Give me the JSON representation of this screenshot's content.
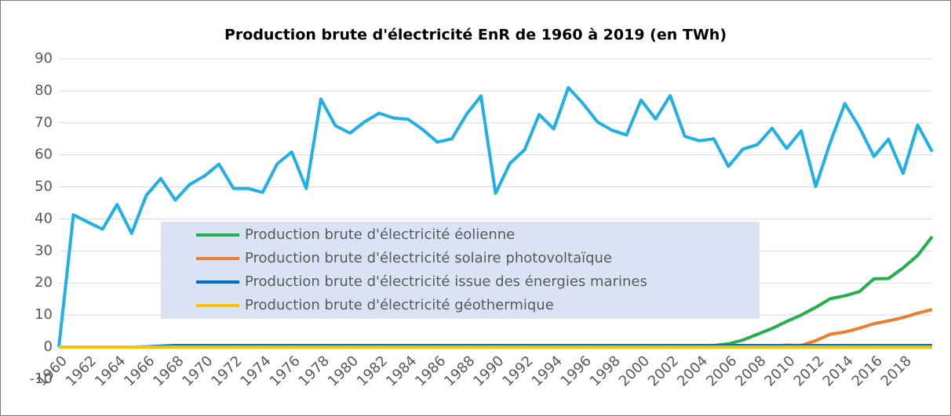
{
  "chart_data": {
    "type": "line",
    "title": "Production brute d'électricité EnR de 1960 à 2019 (en TWh)",
    "categories": [
      "1960",
      null,
      "1962",
      null,
      "1964",
      null,
      "1966",
      null,
      "1968",
      null,
      "1970",
      null,
      "1972",
      null,
      "1974",
      null,
      "1976",
      null,
      "1978",
      null,
      "1980",
      null,
      "1982",
      null,
      "1984",
      null,
      "1986",
      null,
      "1988",
      null,
      "1990",
      null,
      "1992",
      null,
      "1994",
      null,
      "1996",
      null,
      "1998",
      null,
      "2000",
      null,
      "2002",
      null,
      "2004",
      null,
      "2006",
      null,
      "2008",
      null,
      "2010",
      null,
      "2012",
      null,
      "2014",
      null,
      "2016",
      null,
      "2018",
      null,
      null
    ],
    "series": [
      {
        "color": "#1fb0e8",
        "values": [
          0,
          41.3,
          39,
          36.8,
          44.5,
          35.5,
          47.3,
          52.6,
          45.9,
          50.8,
          53.4,
          57.1,
          49.5,
          49.5,
          48.3,
          57.2,
          60.9,
          49.5,
          77.4,
          69.1,
          66.8,
          70.3,
          73,
          71.5,
          71.1,
          67.9,
          64,
          65,
          72.6,
          78.4,
          48,
          57.4,
          61.6,
          72.6,
          68.1,
          81,
          76.1,
          70.3,
          67.7,
          66.2,
          77.1,
          71.2,
          78.5,
          65.8,
          64.4,
          65,
          56.4,
          61.8,
          63.2,
          68.3,
          62,
          67.5,
          50.1,
          63.9,
          76,
          68.6,
          59.5,
          64.9,
          54.2,
          69.3,
          61
        ]
      },
      {
        "name": "Production brute d'électricité éolienne",
        "color": "#22b04b",
        "values": [
          0,
          0,
          0,
          0,
          0,
          0,
          0,
          0,
          0,
          0,
          0,
          0,
          0,
          0,
          0,
          0,
          0,
          0,
          0,
          0,
          0,
          0,
          0,
          0,
          0,
          0,
          0,
          0,
          0,
          0,
          0,
          0,
          0,
          0,
          0,
          0,
          0,
          0,
          0,
          0,
          0,
          0,
          0,
          0,
          0,
          0.5,
          1,
          2.2,
          4,
          5.8,
          8,
          10,
          12.4,
          15.1,
          16,
          17.3,
          21.3,
          21.4,
          24.7,
          28.6,
          34.5
        ]
      },
      {
        "name": "Production brute d'électricité solaire photovoltaïque",
        "color": "#ed7d31",
        "values": [
          0,
          0,
          0,
          0,
          0,
          0,
          0,
          0,
          0,
          0,
          0,
          0,
          0,
          0,
          0,
          0,
          0,
          0,
          0,
          0,
          0,
          0,
          0,
          0,
          0,
          0,
          0,
          0,
          0,
          0,
          0,
          0,
          0,
          0,
          0,
          0,
          0,
          0,
          0,
          0,
          0,
          0,
          0,
          0,
          0,
          0,
          0,
          0,
          0,
          0.2,
          0.6,
          0.5,
          2,
          4,
          4.7,
          5.9,
          7.3,
          8.2,
          9.2,
          10.6,
          11.7
        ]
      },
      {
        "name": "Production brute d'électricité issue des énergies marines",
        "color": "#0070c0",
        "values": [
          0,
          0,
          0,
          0,
          0,
          0,
          0.1,
          0.3,
          0.5,
          0.5,
          0.5,
          0.5,
          0.5,
          0.5,
          0.5,
          0.5,
          0.5,
          0.5,
          0.5,
          0.5,
          0.5,
          0.5,
          0.5,
          0.5,
          0.5,
          0.5,
          0.5,
          0.5,
          0.5,
          0.5,
          0.5,
          0.5,
          0.5,
          0.5,
          0.5,
          0.5,
          0.5,
          0.5,
          0.5,
          0.5,
          0.5,
          0.5,
          0.5,
          0.5,
          0.5,
          0.5,
          0.5,
          0.5,
          0.5,
          0.5,
          0.5,
          0.5,
          0.5,
          0.5,
          0.5,
          0.5,
          0.5,
          0.5,
          0.5,
          0.5,
          0.5
        ]
      },
      {
        "name": "Production brute d'électricité géothermique",
        "color": "#ffc000",
        "values": [
          0,
          0,
          0,
          0,
          0,
          0,
          0,
          0,
          0,
          0,
          0,
          0,
          0,
          0,
          0,
          0,
          0,
          0,
          0,
          0,
          0,
          0,
          0,
          0,
          0,
          0,
          0,
          0,
          0,
          0,
          0,
          0,
          0,
          0,
          0,
          0,
          0,
          0,
          0,
          0,
          0,
          0,
          0,
          0,
          0,
          0,
          0,
          0,
          0,
          0,
          0,
          0,
          0,
          0,
          0,
          0,
          0,
          0,
          0,
          0,
          0
        ]
      }
    ],
    "ylim": [
      0,
      90
    ],
    "yticks": [
      -10,
      0,
      10,
      20,
      30,
      40,
      50,
      60,
      70,
      80,
      90
    ],
    "grid": true
  }
}
